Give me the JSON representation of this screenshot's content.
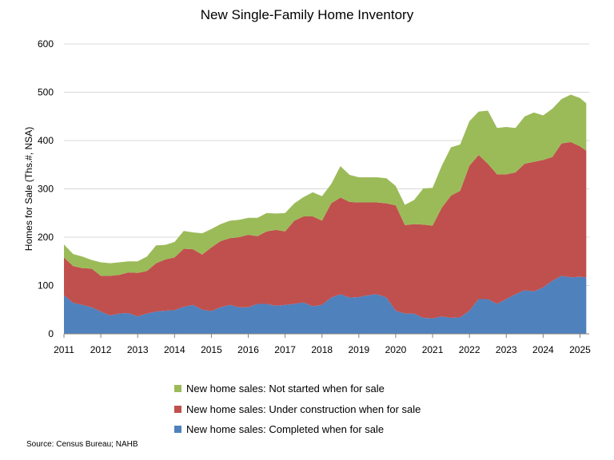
{
  "chart_data": {
    "type": "area",
    "stacked": true,
    "title": "New Single-Family Home Inventory",
    "ylabel": "Homes for Sale (Ths.#, NSA)",
    "xlabel": "",
    "ylim": [
      0,
      600
    ],
    "yticks": [
      0,
      100,
      200,
      300,
      400,
      500,
      600
    ],
    "xlim": [
      2011,
      2025.25
    ],
    "xticks": [
      2011,
      2012,
      2013,
      2014,
      2015,
      2016,
      2017,
      2018,
      2019,
      2020,
      2021,
      2022,
      2023,
      2024,
      2025
    ],
    "grid": "horizontal",
    "legend_position": "bottom",
    "source": "Source: Census Bureau; NAHB",
    "x": [
      2011.0,
      2011.25,
      2011.5,
      2011.75,
      2012.0,
      2012.25,
      2012.5,
      2012.75,
      2013.0,
      2013.25,
      2013.5,
      2013.75,
      2014.0,
      2014.25,
      2014.5,
      2014.75,
      2015.0,
      2015.25,
      2015.5,
      2015.75,
      2016.0,
      2016.25,
      2016.5,
      2016.75,
      2017.0,
      2017.25,
      2017.5,
      2017.75,
      2018.0,
      2018.25,
      2018.5,
      2018.75,
      2019.0,
      2019.25,
      2019.5,
      2019.75,
      2020.0,
      2020.25,
      2020.5,
      2020.75,
      2021.0,
      2021.25,
      2021.5,
      2021.75,
      2022.0,
      2022.25,
      2022.5,
      2022.75,
      2023.0,
      2023.25,
      2023.5,
      2023.75,
      2024.0,
      2024.25,
      2024.5,
      2024.75,
      2025.0,
      2025.17
    ],
    "series": [
      {
        "name": "New home sales: Completed when for sale",
        "color": "#4f81bd",
        "values": [
          80,
          64,
          60,
          55,
          46,
          38,
          42,
          43,
          36,
          42,
          46,
          48,
          49,
          56,
          60,
          50,
          47,
          55,
          60,
          55,
          55,
          62,
          62,
          58,
          60,
          62,
          65,
          57,
          60,
          75,
          82,
          75,
          76,
          80,
          82,
          75,
          48,
          42,
          42,
          33,
          32,
          36,
          33,
          34,
          48,
          72,
          72,
          62,
          72,
          82,
          90,
          88,
          96,
          110,
          120,
          117,
          118,
          117
        ]
      },
      {
        "name": "New home sales: Under construction when for sale",
        "color": "#c0504d",
        "values": [
          78,
          76,
          76,
          80,
          74,
          82,
          80,
          84,
          90,
          88,
          100,
          106,
          109,
          120,
          115,
          114,
          132,
          137,
          138,
          145,
          150,
          140,
          150,
          157,
          152,
          172,
          178,
          186,
          174,
          195,
          200,
          198,
          196,
          192,
          190,
          195,
          218,
          183,
          185,
          193,
          192,
          225,
          253,
          262,
          300,
          298,
          280,
          268,
          258,
          252,
          262,
          268,
          264,
          256,
          274,
          280,
          270,
          262
        ]
      },
      {
        "name": "New home sales: Not started when for sale",
        "color": "#9bbb59",
        "values": [
          27,
          25,
          24,
          18,
          28,
          26,
          26,
          23,
          24,
          30,
          37,
          30,
          32,
          37,
          35,
          44,
          38,
          35,
          36,
          36,
          35,
          38,
          38,
          34,
          38,
          36,
          40,
          50,
          51,
          40,
          65,
          56,
          52,
          52,
          52,
          52,
          40,
          42,
          50,
          75,
          78,
          87,
          100,
          96,
          92,
          90,
          110,
          96,
          98,
          92,
          98,
          102,
          92,
          100,
          92,
          98,
          100,
          98
        ]
      }
    ],
    "legend": [
      {
        "name": "New home sales: Not started when for sale",
        "color": "#9bbb59"
      },
      {
        "name": "New home sales: Under construction when for sale",
        "color": "#c0504d"
      },
      {
        "name": "New home sales: Completed when for sale",
        "color": "#4f81bd"
      }
    ]
  }
}
